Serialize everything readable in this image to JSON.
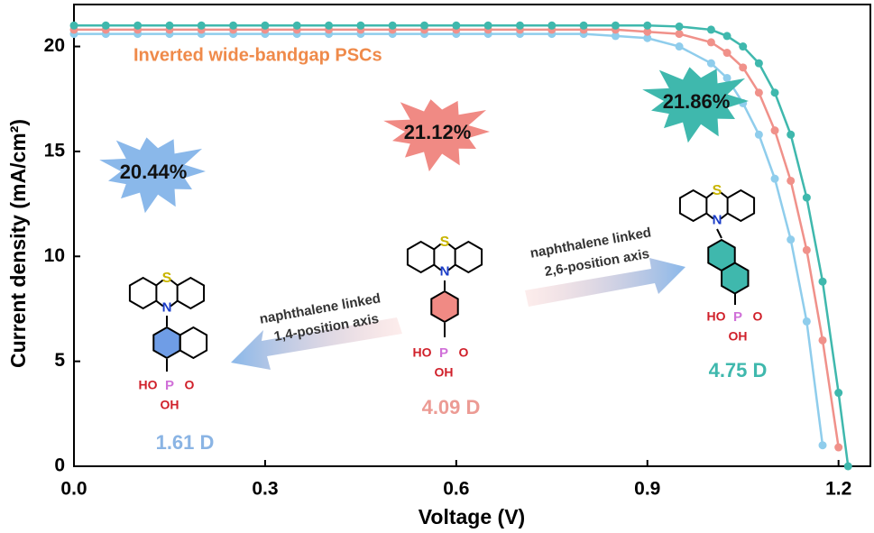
{
  "chart_data": {
    "type": "line",
    "subtitle": "Inverted wide-bandgap PSCs",
    "x_label": "Voltage (V)",
    "y_label": "Current density (mA/cm²)",
    "x": [
      0,
      0.05,
      0.1,
      0.15,
      0.2,
      0.25,
      0.3,
      0.35,
      0.4,
      0.45,
      0.5,
      0.55,
      0.6,
      0.65,
      0.7,
      0.75,
      0.8,
      0.85,
      0.9,
      0.95,
      1.0,
      1.025,
      1.05,
      1.075,
      1.1,
      1.125,
      1.15,
      1.175,
      1.2,
      1.215
    ],
    "series": [
      {
        "name": "1,4-naphthalene",
        "color": "#8fcdec",
        "values": [
          20.6,
          20.6,
          20.6,
          20.6,
          20.6,
          20.6,
          20.6,
          20.6,
          20.6,
          20.6,
          20.6,
          20.6,
          20.6,
          20.6,
          20.6,
          20.6,
          20.6,
          20.5,
          20.4,
          20.0,
          19.2,
          18.5,
          17.3,
          15.8,
          13.7,
          10.8,
          6.9,
          1.0,
          null,
          null
        ]
      },
      {
        "name": "phenyl",
        "color": "#f0918a",
        "values": [
          20.8,
          20.8,
          20.8,
          20.8,
          20.8,
          20.8,
          20.8,
          20.8,
          20.8,
          20.8,
          20.8,
          20.8,
          20.8,
          20.8,
          20.8,
          20.8,
          20.8,
          20.8,
          20.7,
          20.6,
          20.2,
          19.7,
          19.0,
          17.8,
          16.0,
          13.6,
          10.3,
          6.0,
          0.9,
          null
        ]
      },
      {
        "name": "2,6-naphthalene",
        "color": "#3fb8ad",
        "values": [
          21.0,
          21.0,
          21.0,
          21.0,
          21.0,
          21.0,
          21.0,
          21.0,
          21.0,
          21.0,
          21.0,
          21.0,
          21.0,
          21.0,
          21.0,
          21.0,
          21.0,
          21.0,
          21.0,
          20.95,
          20.8,
          20.5,
          20.0,
          19.2,
          17.8,
          15.8,
          12.8,
          8.8,
          3.5,
          0
        ]
      }
    ],
    "xlim": [
      0,
      1.25
    ],
    "ylim": [
      0,
      22
    ],
    "xticks": [
      {
        "value": 0,
        "label": "0.0"
      },
      0.3,
      0.6,
      0.9,
      1.2
    ],
    "yticks": [
      0,
      5,
      10,
      15,
      20
    ],
    "badges": [
      "20.44%",
      "21.12%",
      "21.86%"
    ],
    "dipoles": [
      "1.61 D",
      "4.09 D",
      "4.75 D"
    ],
    "arrows": [
      [
        "naphthalene linked",
        "1,4-position axis"
      ],
      [
        "naphthalene linked",
        "2,6-position axis"
      ]
    ],
    "atoms": [
      "S",
      "N",
      "HO",
      "P",
      "O",
      "OH"
    ]
  }
}
